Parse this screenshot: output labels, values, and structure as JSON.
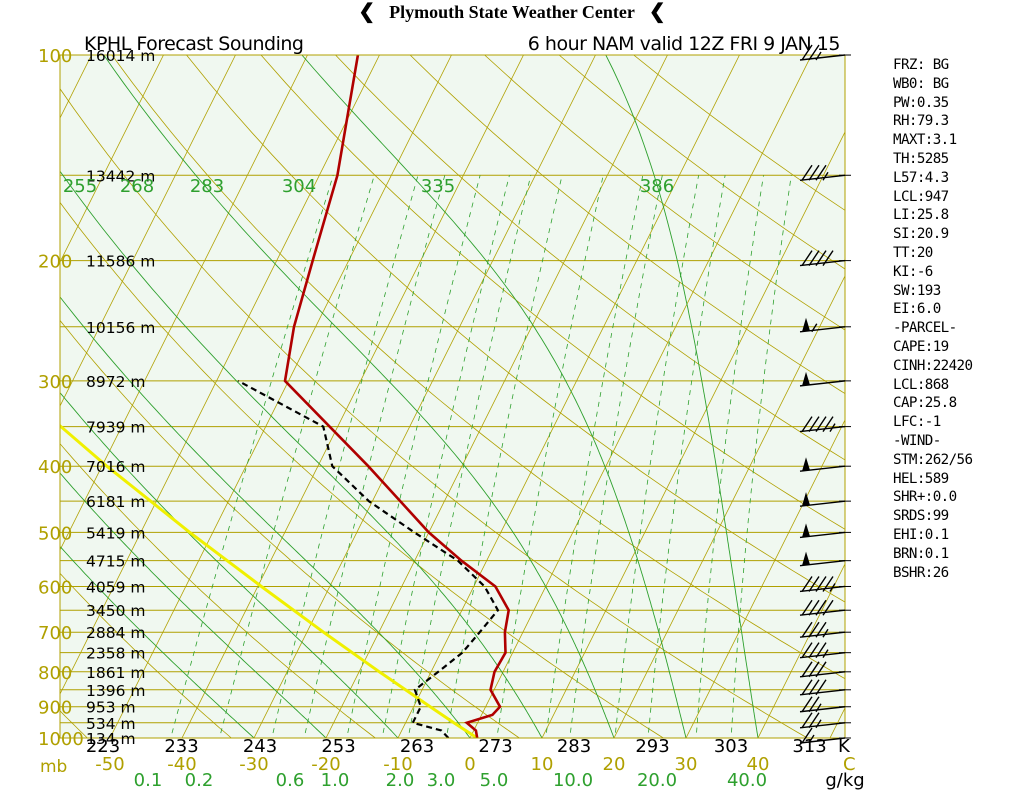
{
  "header": {
    "title": "Plymouth State Weather Center",
    "left_flag_icon": "wind-flag-icon",
    "right_flag_icon": "wind-flag-icon"
  },
  "plot_title_left": "KPHL Forecast Sounding",
  "plot_title_right": "6 hour NAM valid 12Z FRI 9 JAN 15",
  "colors": {
    "background": "#f0f8f0",
    "isobar": "#b0a000",
    "isotherm": "#b0a000",
    "dry_adiabat": "#b0a000",
    "moist_adiabat": "#2ea02e",
    "mixing_ratio": "#2ea02e",
    "temperature": "#b00000",
    "dewpoint": "#000000",
    "parcel": "#f0f000",
    "pressure_label": "#b0a000",
    "theta_label": "#2ea02e"
  },
  "chart_data": {
    "type": "skew-t",
    "title": "KPHL Forecast Sounding 6 hour NAM valid 12Z FRI 9 JAN 15",
    "ylabel": "mb",
    "xlabel": "C",
    "pressure_ticks": [
      100,
      200,
      300,
      400,
      500,
      600,
      700,
      800,
      900,
      1000
    ],
    "temperature_ticks": [
      -50,
      -40,
      -30,
      -20,
      -10,
      0,
      10,
      20,
      30,
      40
    ],
    "temperature_tick_labels": [
      "-50",
      "-40",
      "-30",
      "-20",
      "-10",
      "0",
      "10",
      "20",
      "30",
      "40"
    ],
    "pressure_unit_label": "mb",
    "temperature_unit_label": "C",
    "theta_e_labels_bottom": [
      "223",
      "233",
      "243",
      "253",
      "263",
      "273",
      "283",
      "293",
      "303",
      "313"
    ],
    "theta_e_unit_label": "K",
    "theta_labels_top": [
      "255",
      "268",
      "283",
      "304",
      "335",
      "386"
    ],
    "mixing_ratio_labels": [
      "0.1",
      "0.2",
      "0.6",
      "1.0",
      "2.0",
      "3.0",
      "5.0",
      "10.0",
      "20.0",
      "40.0"
    ],
    "mixing_ratio_unit_label": "g/kg",
    "height_labels": [
      {
        "p": 100,
        "label": "16014 m"
      },
      {
        "p": 150,
        "label": "13442 m"
      },
      {
        "p": 200,
        "label": "11586 m"
      },
      {
        "p": 250,
        "label": "10156 m"
      },
      {
        "p": 300,
        "label": "8972 m"
      },
      {
        "p": 350,
        "label": "7939 m"
      },
      {
        "p": 400,
        "label": "7016 m"
      },
      {
        "p": 450,
        "label": "6181 m"
      },
      {
        "p": 500,
        "label": "5419 m"
      },
      {
        "p": 550,
        "label": "4715 m"
      },
      {
        "p": 600,
        "label": "4059 m"
      },
      {
        "p": 650,
        "label": "3450 m"
      },
      {
        "p": 700,
        "label": "2884 m"
      },
      {
        "p": 750,
        "label": "2358 m"
      },
      {
        "p": 800,
        "label": "1861 m"
      },
      {
        "p": 850,
        "label": "1396 m"
      },
      {
        "p": 900,
        "label": "953 m"
      },
      {
        "p": 950,
        "label": "534 m"
      },
      {
        "p": 1000,
        "label": "134 m"
      }
    ],
    "temperature_profile": [
      {
        "p": 1000,
        "t": 1.0
      },
      {
        "p": 975,
        "t": 0.3
      },
      {
        "p": 950,
        "t": -1.5
      },
      {
        "p": 925,
        "t": 1.5
      },
      {
        "p": 900,
        "t": 2.0
      },
      {
        "p": 850,
        "t": -0.5
      },
      {
        "p": 800,
        "t": -1.2
      },
      {
        "p": 750,
        "t": -1.0
      },
      {
        "p": 700,
        "t": -2.5
      },
      {
        "p": 650,
        "t": -3.5
      },
      {
        "p": 600,
        "t": -7.0
      },
      {
        "p": 550,
        "t": -13.5
      },
      {
        "p": 500,
        "t": -20.0
      },
      {
        "p": 400,
        "t": -33.0
      },
      {
        "p": 300,
        "t": -50.5
      },
      {
        "p": 250,
        "t": -53.0
      },
      {
        "p": 200,
        "t": -55.0
      },
      {
        "p": 150,
        "t": -57.5
      },
      {
        "p": 100,
        "t": -63.0
      }
    ],
    "dewpoint_profile": [
      {
        "p": 1000,
        "t": -3.0
      },
      {
        "p": 975,
        "t": -4.5
      },
      {
        "p": 950,
        "t": -9.0
      },
      {
        "p": 900,
        "t": -9.0
      },
      {
        "p": 850,
        "t": -11.0
      },
      {
        "p": 800,
        "t": -9.0
      },
      {
        "p": 750,
        "t": -7.0
      },
      {
        "p": 700,
        "t": -6.0
      },
      {
        "p": 650,
        "t": -5.0
      },
      {
        "p": 600,
        "t": -8.5
      },
      {
        "p": 550,
        "t": -14.0
      },
      {
        "p": 500,
        "t": -22.0
      },
      {
        "p": 450,
        "t": -30.5
      },
      {
        "p": 400,
        "t": -38.0
      },
      {
        "p": 350,
        "t": -42.0
      },
      {
        "p": 300,
        "t": -57.0
      }
    ],
    "parcel_profile": [
      {
        "p": 1000,
        "t": 1.0
      },
      {
        "p": 950,
        "t": -3.3
      },
      {
        "p": 900,
        "t": -7.7
      },
      {
        "p": 850,
        "t": -12.3
      },
      {
        "p": 800,
        "t": -17.2
      },
      {
        "p": 700,
        "t": -27.7
      },
      {
        "p": 600,
        "t": -39.5
      },
      {
        "p": 500,
        "t": -53.2
      },
      {
        "p": 400,
        "t": -69.3
      },
      {
        "p": 300,
        "t": -89.0
      },
      {
        "p": 250,
        "t": -100.5
      },
      {
        "p": 200,
        "t": -113.8
      },
      {
        "p": 150,
        "t": -129.8
      },
      {
        "p": 115,
        "t": -143.0
      }
    ],
    "wind_barbs": [
      {
        "p": 100,
        "speed_kt": 25
      },
      {
        "p": 150,
        "speed_kt": 35
      },
      {
        "p": 200,
        "speed_kt": 40
      },
      {
        "p": 250,
        "speed_kt": 55
      },
      {
        "p": 300,
        "speed_kt": 50
      },
      {
        "p": 350,
        "speed_kt": 45
      },
      {
        "p": 400,
        "speed_kt": 50
      },
      {
        "p": 450,
        "speed_kt": 50
      },
      {
        "p": 500,
        "speed_kt": 50
      },
      {
        "p": 550,
        "speed_kt": 50
      },
      {
        "p": 600,
        "speed_kt": 45
      },
      {
        "p": 650,
        "speed_kt": 40
      },
      {
        "p": 700,
        "speed_kt": 35
      },
      {
        "p": 750,
        "speed_kt": 35
      },
      {
        "p": 800,
        "speed_kt": 30
      },
      {
        "p": 850,
        "speed_kt": 30
      },
      {
        "p": 900,
        "speed_kt": 25
      },
      {
        "p": 950,
        "speed_kt": 25
      },
      {
        "p": 1000,
        "speed_kt": 15
      }
    ]
  },
  "indices": [
    "FRZ: BG",
    "WB0: BG",
    "PW:0.35",
    "RH:79.3",
    "MAXT:3.1",
    "TH:5285",
    "L57:4.3",
    "LCL:947",
    "LI:25.8",
    "SI:20.9",
    "TT:20",
    "KI:-6",
    "SW:193",
    "EI:6.0",
    "-PARCEL-",
    "CAPE:19",
    "CINH:22420",
    "LCL:868",
    "CAP:25.8",
    "LFC:-1",
    "-WIND-",
    "STM:262/56",
    "HEL:589",
    "SHR+:0.0",
    "SRDS:99",
    "EHI:0.1",
    "BRN:0.1",
    "BSHR:26"
  ]
}
